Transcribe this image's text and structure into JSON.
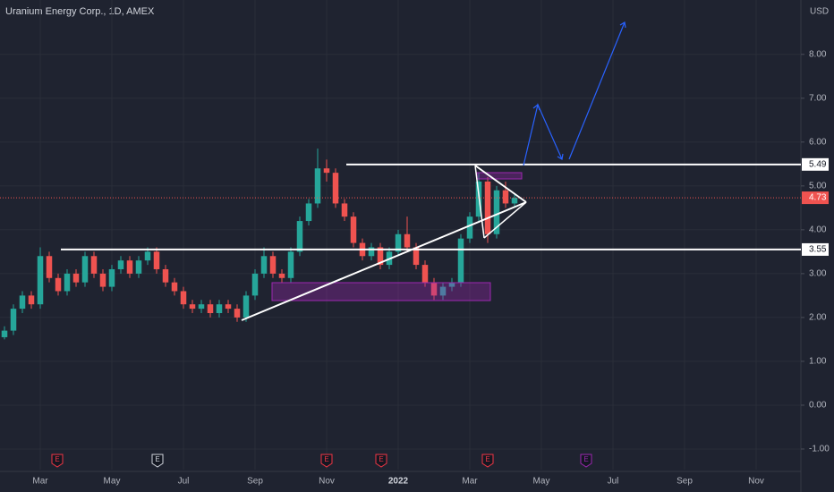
{
  "chart_data": {
    "type": "candlestick",
    "title": "Uranium Energy Corp., 1D, AMEX",
    "y_axis_label": "USD",
    "up_color": "#26a69a",
    "down_color": "#ef5350",
    "xlim": [
      0.875,
      23.25
    ],
    "ylim": [
      -1.47,
      9.24
    ],
    "xticks": [
      {
        "value": 2,
        "label": "Mar"
      },
      {
        "value": 4,
        "label": "May"
      },
      {
        "value": 6,
        "label": "Jul"
      },
      {
        "value": 8,
        "label": "Sep"
      },
      {
        "value": 10,
        "label": "Nov"
      },
      {
        "value": 12,
        "label": "2022"
      },
      {
        "value": 14,
        "label": "Mar"
      },
      {
        "value": 16,
        "label": "May"
      },
      {
        "value": 18,
        "label": "Jul"
      },
      {
        "value": 20,
        "label": "Sep"
      },
      {
        "value": 22,
        "label": "Nov"
      }
    ],
    "yticks": [
      {
        "value": -1,
        "label": "-1.00"
      },
      {
        "value": 0,
        "label": "0.00"
      },
      {
        "value": 1,
        "label": "1.00"
      },
      {
        "value": 2,
        "label": "2.00"
      },
      {
        "value": 3,
        "label": "3.00"
      },
      {
        "value": 4,
        "label": "4.00"
      },
      {
        "value": 5,
        "label": "5.00"
      },
      {
        "value": 6,
        "label": "6.00"
      },
      {
        "value": 7,
        "label": "7.00"
      },
      {
        "value": 8,
        "label": "8.00"
      }
    ],
    "x": [
      1.0,
      1.25,
      1.5,
      1.75,
      2.0,
      2.25,
      2.5,
      2.75,
      3.0,
      3.25,
      3.5,
      3.75,
      4.0,
      4.25,
      4.5,
      4.75,
      5.0,
      5.25,
      5.5,
      5.75,
      6.0,
      6.25,
      6.5,
      6.75,
      7.0,
      7.25,
      7.5,
      7.75,
      8.0,
      8.25,
      8.5,
      8.75,
      9.0,
      9.25,
      9.5,
      9.75,
      10.0,
      10.25,
      10.5,
      10.75,
      11.0,
      11.25,
      11.5,
      11.75,
      12.0,
      12.25,
      12.5,
      12.75,
      13.0,
      13.25,
      13.5,
      13.75,
      14.0,
      14.25,
      14.5,
      14.75,
      15.0,
      15.25
    ],
    "open": [
      1.55,
      1.7,
      2.2,
      2.5,
      2.3,
      3.4,
      2.9,
      2.6,
      3.0,
      2.8,
      3.4,
      3.0,
      2.7,
      3.1,
      3.3,
      3.0,
      3.3,
      3.5,
      3.1,
      2.8,
      2.6,
      2.3,
      2.2,
      2.3,
      2.1,
      2.3,
      2.2,
      2.0,
      2.5,
      3.0,
      3.4,
      3.0,
      2.9,
      3.5,
      4.2,
      4.6,
      5.4,
      5.3,
      4.6,
      4.3,
      3.7,
      3.4,
      3.6,
      3.2,
      3.5,
      3.9,
      3.6,
      3.2,
      2.8,
      2.5,
      2.7,
      2.8,
      3.8,
      4.3,
      5.1,
      3.9,
      4.9,
      4.6
    ],
    "high": [
      1.8,
      2.3,
      2.6,
      2.6,
      3.6,
      3.5,
      3.0,
      3.1,
      3.1,
      3.5,
      3.5,
      3.1,
      3.2,
      3.4,
      3.4,
      3.4,
      3.6,
      3.6,
      3.2,
      2.9,
      2.7,
      2.4,
      2.4,
      2.4,
      2.4,
      2.4,
      2.3,
      2.6,
      3.1,
      3.6,
      3.5,
      3.1,
      3.6,
      4.3,
      4.7,
      5.85,
      5.6,
      5.4,
      4.7,
      4.4,
      3.8,
      3.7,
      3.7,
      3.6,
      4.0,
      4.3,
      3.7,
      3.3,
      2.9,
      2.8,
      2.9,
      3.9,
      4.4,
      5.3,
      5.2,
      5.0,
      5.1,
      4.8
    ],
    "low": [
      1.5,
      1.6,
      2.1,
      2.2,
      2.2,
      2.8,
      2.5,
      2.5,
      2.7,
      2.7,
      2.9,
      2.6,
      2.6,
      3.0,
      2.9,
      2.9,
      3.2,
      3.0,
      2.7,
      2.5,
      2.2,
      2.1,
      2.1,
      2.0,
      2.0,
      2.1,
      1.9,
      1.9,
      2.4,
      2.9,
      2.9,
      2.8,
      2.8,
      3.4,
      4.1,
      4.5,
      5.1,
      4.5,
      4.2,
      3.6,
      3.3,
      3.3,
      3.1,
      3.1,
      3.4,
      3.5,
      3.1,
      2.7,
      2.4,
      2.4,
      2.6,
      2.7,
      3.7,
      4.2,
      3.7,
      3.8,
      4.5,
      4.5
    ],
    "close": [
      1.7,
      2.2,
      2.5,
      2.3,
      3.4,
      2.9,
      2.6,
      3.0,
      2.8,
      3.4,
      3.0,
      2.7,
      3.1,
      3.3,
      3.0,
      3.3,
      3.5,
      3.1,
      2.8,
      2.6,
      2.3,
      2.2,
      2.3,
      2.1,
      2.3,
      2.2,
      2.0,
      2.5,
      3.0,
      3.4,
      3.0,
      2.9,
      3.5,
      4.2,
      4.6,
      5.4,
      5.3,
      4.6,
      4.3,
      3.7,
      3.4,
      3.6,
      3.2,
      3.5,
      3.9,
      3.6,
      3.2,
      2.8,
      2.5,
      2.7,
      2.8,
      3.8,
      4.3,
      5.1,
      3.9,
      4.9,
      4.6,
      4.73
    ],
    "levels": [
      {
        "value": 5.49,
        "label": "5.49"
      },
      {
        "value": 3.55,
        "label": "3.55"
      }
    ],
    "last_price": {
      "value": 4.73,
      "label": "4.73"
    },
    "event_labels": [
      "E",
      "E",
      "E",
      "E",
      "E",
      "E"
    ]
  }
}
